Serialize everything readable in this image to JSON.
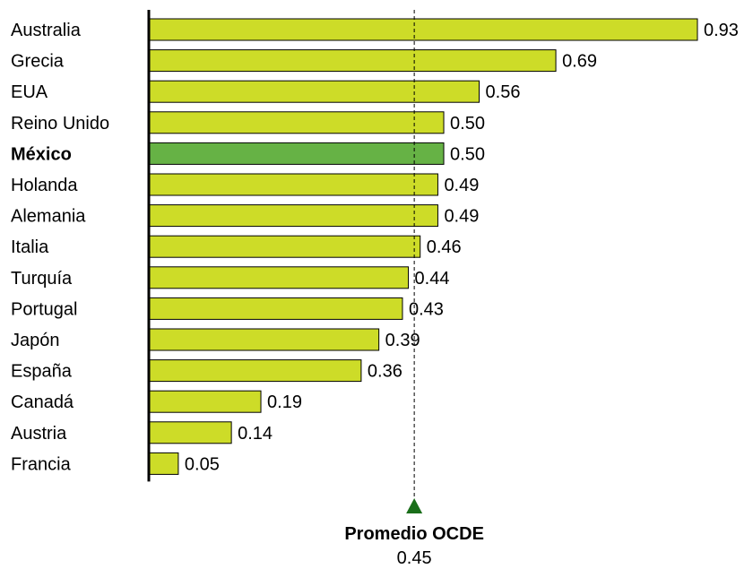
{
  "chart_data": {
    "type": "bar",
    "orientation": "horizontal",
    "categories": [
      "Australia",
      "Grecia",
      "EUA",
      "Reino Unido",
      "México",
      "Holanda",
      "Alemania",
      "Italia",
      "Turquía",
      "Portugal",
      "Japón",
      "España",
      "Canadá",
      "Austria",
      "Francia"
    ],
    "values": [
      0.93,
      0.69,
      0.56,
      0.5,
      0.5,
      0.49,
      0.49,
      0.46,
      0.44,
      0.43,
      0.39,
      0.36,
      0.19,
      0.14,
      0.05
    ],
    "value_labels": [
      "0.93",
      "0.69",
      "0.56",
      "0.50",
      "0.50",
      "0.49",
      "0.49",
      "0.46",
      "0.44",
      "0.43",
      "0.39",
      "0.36",
      "0.19",
      "0.14",
      "0.05"
    ],
    "highlight": "México",
    "colors": {
      "bar": "#cddc28",
      "highlight": "#66b245",
      "reference": "#1a6e1a",
      "border": "#000000"
    },
    "reference": {
      "label": "Promedio OCDE",
      "value": 0.45,
      "value_label": "0.45"
    },
    "xlim": [
      0,
      0.93
    ],
    "grid": false,
    "legend": "none",
    "title": "",
    "xlabel": "",
    "ylabel": ""
  }
}
